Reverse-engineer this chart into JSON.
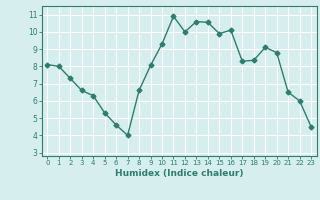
{
  "x": [
    0,
    1,
    2,
    3,
    4,
    5,
    6,
    7,
    8,
    9,
    10,
    11,
    12,
    13,
    14,
    15,
    16,
    17,
    18,
    19,
    20,
    21,
    22,
    23
  ],
  "y": [
    8.1,
    8.0,
    7.3,
    6.6,
    6.3,
    5.3,
    4.6,
    4.0,
    6.6,
    8.05,
    9.3,
    10.9,
    10.0,
    10.6,
    10.55,
    9.9,
    10.1,
    8.3,
    8.35,
    9.1,
    8.8,
    6.5,
    6.0,
    4.5
  ],
  "xlabel": "Humidex (Indice chaleur)",
  "xlim": [
    -0.5,
    23.5
  ],
  "ylim": [
    2.8,
    11.5
  ],
  "yticks": [
    3,
    4,
    5,
    6,
    7,
    8,
    9,
    10,
    11
  ],
  "xticks": [
    0,
    1,
    2,
    3,
    4,
    5,
    6,
    7,
    8,
    9,
    10,
    11,
    12,
    13,
    14,
    15,
    16,
    17,
    18,
    19,
    20,
    21,
    22,
    23
  ],
  "line_color": "#2e7d6e",
  "marker": "D",
  "marker_size": 2.5,
  "bg_color": "#d6eeee",
  "grid_color": "#ffffff",
  "axis_color": "#2e7d6e",
  "tick_label_color": "#2e7d6e",
  "xlabel_color": "#2e7d6e",
  "line_width": 1.0
}
